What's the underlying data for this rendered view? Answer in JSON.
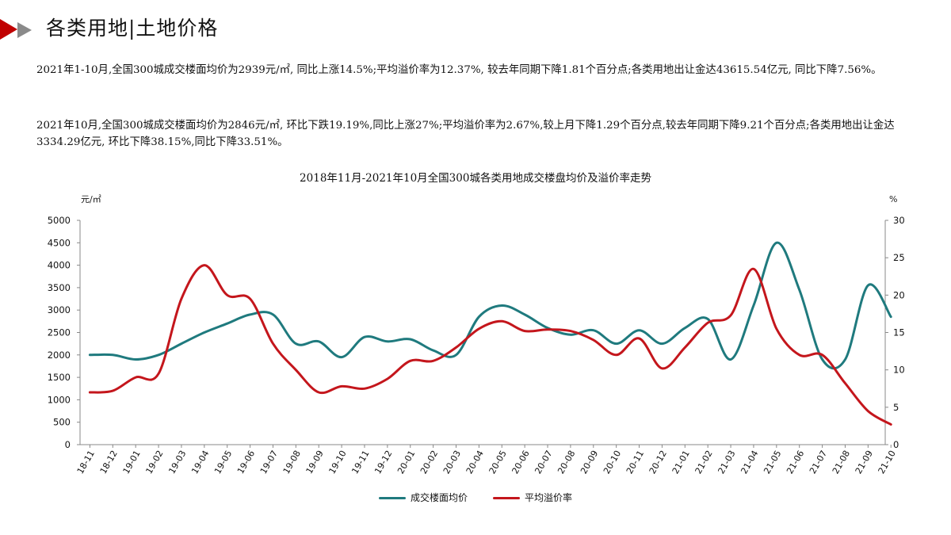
{
  "header": {
    "title": "各类用地|土地价格"
  },
  "paragraphs": [
    "2021年1-10月,全国300城成交楼面均价为2939元/㎡, 同比上涨14.5%;平均溢价率为12.37%, 较去年同期下降1.81个百分点;各类用地出让金达43615.54亿元, 同比下降7.56%。",
    "2021年10月,全国300城成交楼面均价为2846元/㎡, 环比下跌19.19%,同比上涨27%;平均溢价率为2.67%,较上月下降1.29个百分点,较去年同期下降9.21个百分点;各类用地出让金达3334.29亿元, 环比下降38.15%,同比下降33.51%。"
  ],
  "colors": {
    "series_price": "#1f7a7e",
    "series_premium": "#c4161c",
    "axis": "#888888",
    "title_red": "#c00000"
  },
  "chart_data": {
    "type": "line",
    "title": "2018年11月-2021年10月全国300城各类用地成交楼盘均价及溢价率走势",
    "ylabel_left": "元/㎡",
    "ylabel_right": "%",
    "ylim_left": [
      0,
      5000
    ],
    "yticks_left": [
      0,
      500,
      1000,
      1500,
      2000,
      2500,
      3000,
      3500,
      4000,
      4500,
      5000
    ],
    "ylim_right": [
      0,
      30
    ],
    "yticks_right": [
      0,
      5,
      10,
      15,
      20,
      25,
      30
    ],
    "grid": false,
    "legend_position": "bottom",
    "categories": [
      "18-11",
      "18-12",
      "19-01",
      "19-02",
      "19-03",
      "19-04",
      "19-05",
      "19-06",
      "19-07",
      "19-08",
      "19-09",
      "19-10",
      "19-11",
      "19-12",
      "20-01",
      "20-02",
      "20-03",
      "20-04",
      "20-05",
      "20-06",
      "20-07",
      "20-08",
      "20-09",
      "20-10",
      "20-11",
      "20-12",
      "21-01",
      "21-02",
      "21-03",
      "21-04",
      "21-05",
      "21-06",
      "21-07",
      "21-08",
      "21-09",
      "21-10"
    ],
    "series": [
      {
        "name": "成交楼面均价",
        "axis": "left",
        "values": [
          2000,
          2000,
          1900,
          2000,
          2250,
          2500,
          2700,
          2900,
          2900,
          2250,
          2300,
          1950,
          2400,
          2300,
          2350,
          2100,
          2000,
          2850,
          3100,
          2900,
          2600,
          2450,
          2550,
          2250,
          2550,
          2250,
          2600,
          2800,
          1900,
          3100,
          4500,
          3450,
          1900,
          1900,
          3550,
          2850
        ]
      },
      {
        "name": "平均溢价率",
        "axis": "right",
        "values": [
          7,
          7.2,
          9,
          9.5,
          19.5,
          24,
          20,
          19.5,
          13.5,
          10,
          7,
          7.8,
          7.5,
          8.8,
          11.2,
          11.2,
          13,
          15.5,
          16.5,
          15.2,
          15.4,
          15.2,
          14,
          12,
          14.2,
          10.2,
          13,
          16.3,
          17.3,
          23.5,
          15.5,
          12,
          12,
          8.2,
          4.5,
          2.7
        ]
      }
    ]
  }
}
